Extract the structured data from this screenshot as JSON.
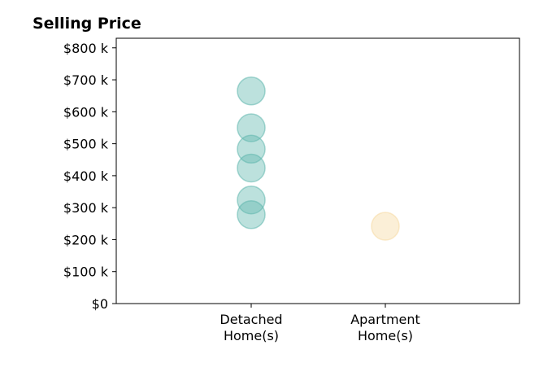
{
  "chart_data": {
    "type": "scatter",
    "title": "Selling Price",
    "xlabel": "",
    "ylabel": "",
    "categories": [
      "Detached\nHome(s)",
      "Apartment\nHome(s)"
    ],
    "ylim": [
      0,
      830000
    ],
    "yticks": [
      0,
      100000,
      200000,
      300000,
      400000,
      500000,
      600000,
      700000,
      800000
    ],
    "ytick_labels": [
      "$0",
      "$100 k",
      "$200 k",
      "$300 k",
      "$400 k",
      "$500 k",
      "$600 k",
      "$700 k",
      "$800 k"
    ],
    "grid": false,
    "legend": "none",
    "series": [
      {
        "category_index": 0,
        "color": "#5fb7ad",
        "values": [
          665000,
          550000,
          483000,
          424000,
          324000,
          278000
        ]
      },
      {
        "category_index": 1,
        "color": "#f5d9a0",
        "values": [
          242000
        ]
      }
    ]
  }
}
